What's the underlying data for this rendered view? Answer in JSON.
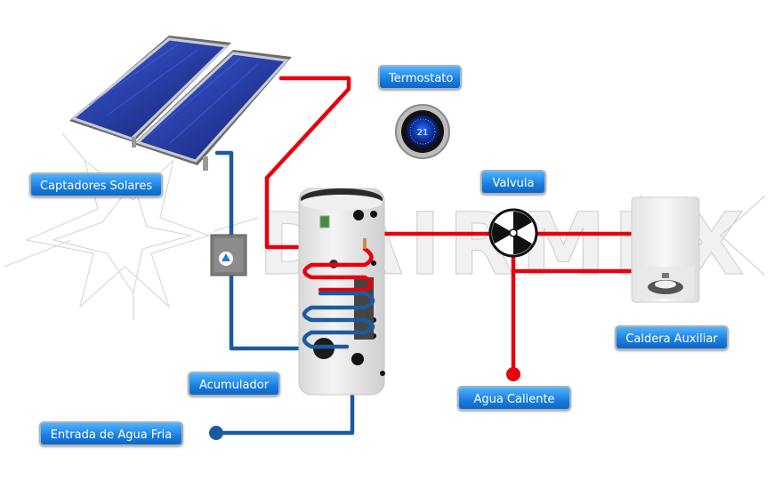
{
  "watermark": "DAIRMEX",
  "labels": {
    "captadores": "Captadores Solares",
    "termostato": "Termostato",
    "valvula": "Valvula",
    "caldera": "Caldera Auxiliar",
    "acumulador": "Acumulador",
    "agua_caliente": "Agua Caliente",
    "entrada_agua": "Entrada de Agua Fria"
  },
  "thermostat": {
    "temperature": "21"
  },
  "colors": {
    "hot_pipe": "#e8000c",
    "cold_pipe": "#1c5aa0",
    "label_bg": "#1a7de0",
    "panel": "#1d2c8c"
  }
}
